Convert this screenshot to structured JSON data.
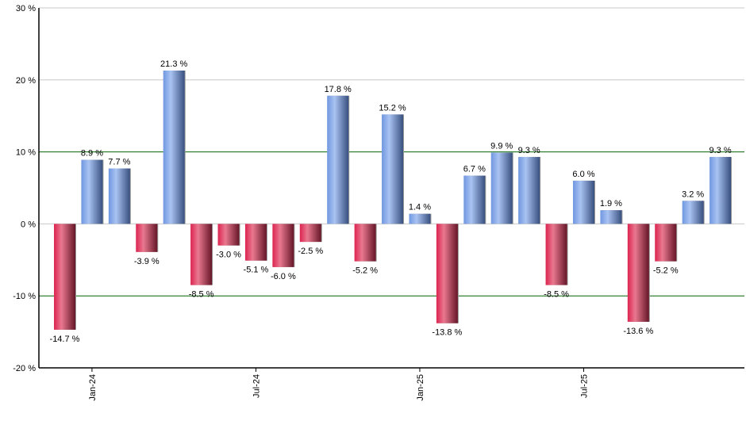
{
  "chart_data": {
    "type": "bar",
    "title": "",
    "xlabel": "",
    "ylabel": "",
    "ylim": [
      -20,
      30
    ],
    "y_ticks": [
      30,
      20,
      10,
      0,
      -10,
      -20
    ],
    "y_tick_labels": [
      "30 %",
      "20 %",
      "10 %",
      "0 %",
      "-10 %",
      "-20 %"
    ],
    "grid": true,
    "highlight_lines": [
      10,
      -10
    ],
    "categories": [
      "Dec-23",
      "Jan-24",
      "Feb-24",
      "Mar-24",
      "Apr-24",
      "May-24",
      "Jun-24",
      "Jul-24",
      "Aug-24",
      "Sep-24",
      "Oct-24",
      "Nov-24",
      "Dec-24",
      "Jan-25",
      "Feb-25",
      "Mar-25",
      "Apr-25",
      "May-25",
      "Jun-25",
      "Jul-25",
      "Aug-25",
      "Sep-25",
      "Oct-25",
      "Nov-25",
      "Dec-25"
    ],
    "x_tick_labels": [
      {
        "index": 1,
        "label": "Jan-24"
      },
      {
        "index": 7,
        "label": "Jul-24"
      },
      {
        "index": 13,
        "label": "Jan-25"
      },
      {
        "index": 19,
        "label": "Jul-25"
      }
    ],
    "values": [
      -14.7,
      8.9,
      7.7,
      -3.9,
      21.3,
      -8.5,
      -3.0,
      -5.1,
      -6.0,
      -2.5,
      17.8,
      -5.2,
      15.2,
      1.4,
      -13.8,
      6.7,
      9.9,
      9.3,
      -8.5,
      6.0,
      1.9,
      -13.6,
      -5.2,
      3.2,
      9.3
    ],
    "value_suffix": " %",
    "colors": {
      "positive": "#7a9fe6",
      "negative": "#d92d55",
      "highlight_line": "#006400",
      "grid": "#c8c8c8"
    }
  }
}
